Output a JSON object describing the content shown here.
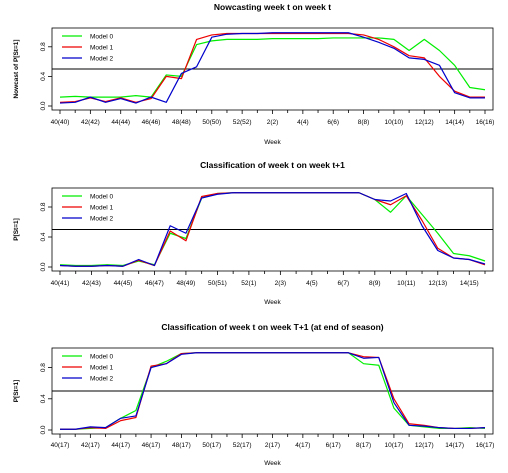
{
  "colors": {
    "Model 0": "#00ee00",
    "Model 1": "#ee0000",
    "Model 2": "#0000cc",
    "threshold": "#000000"
  },
  "chart_data": [
    {
      "type": "line",
      "title": "Nowcasting week t on week t",
      "xlabel": "Week",
      "ylabel": "Nowcast of P[St=1]",
      "ylim": [
        0,
        1
      ],
      "yticks": [
        "0.0",
        "0.4",
        "0.8"
      ],
      "threshold": 0.5,
      "legend_position": "top-left",
      "x_tick_labels": [
        "40(40)",
        "42(42)",
        "44(44)",
        "46(46)",
        "48(48)",
        "50(50)",
        "52(52)",
        "2(2)",
        "4(4)",
        "6(6)",
        "8(8)",
        "10(10)",
        "12(12)",
        "14(14)",
        "16(16)"
      ],
      "series": [
        {
          "name": "Model 0",
          "values": [
            0.12,
            0.13,
            0.12,
            0.12,
            0.12,
            0.14,
            0.12,
            0.42,
            0.4,
            0.83,
            0.88,
            0.9,
            0.9,
            0.9,
            0.91,
            0.91,
            0.91,
            0.91,
            0.92,
            0.92,
            0.92,
            0.92,
            0.9,
            0.75,
            0.9,
            0.75,
            0.55,
            0.25,
            0.22
          ]
        },
        {
          "name": "Model 1",
          "values": [
            0.05,
            0.06,
            0.11,
            0.06,
            0.11,
            0.05,
            0.1,
            0.4,
            0.37,
            0.9,
            0.96,
            0.98,
            0.98,
            0.98,
            0.98,
            0.98,
            0.98,
            0.98,
            0.98,
            0.98,
            0.96,
            0.9,
            0.8,
            0.68,
            0.65,
            0.4,
            0.2,
            0.12,
            0.12
          ]
        },
        {
          "name": "Model 2",
          "values": [
            0.04,
            0.05,
            0.12,
            0.05,
            0.1,
            0.04,
            0.12,
            0.05,
            0.44,
            0.53,
            0.93,
            0.97,
            0.98,
            0.98,
            0.99,
            0.99,
            0.99,
            0.99,
            0.99,
            0.99,
            0.93,
            0.86,
            0.78,
            0.65,
            0.63,
            0.55,
            0.18,
            0.11,
            0.11
          ]
        }
      ]
    },
    {
      "type": "line",
      "title": "Classification of week t on week t+1",
      "xlabel": "Week",
      "ylabel": "P[St=1]",
      "ylim": [
        0,
        1
      ],
      "yticks": [
        "0.0",
        "0.4",
        "0.8"
      ],
      "threshold": 0.5,
      "legend_position": "top-left",
      "x_tick_labels": [
        "40(41)",
        "42(43)",
        "44(45)",
        "46(47)",
        "48(49)",
        "50(51)",
        "52(1)",
        "2(3)",
        "4(5)",
        "6(7)",
        "8(9)",
        "10(11)",
        "12(13)",
        "14(15)",
        "16(17)"
      ],
      "series": [
        {
          "name": "Model 0",
          "values": [
            0.03,
            0.02,
            0.02,
            0.03,
            0.02,
            0.08,
            0.03,
            0.45,
            0.38,
            0.92,
            0.98,
            0.99,
            0.99,
            0.99,
            0.99,
            0.99,
            0.99,
            0.99,
            0.99,
            0.99,
            0.9,
            0.73,
            0.95,
            0.7,
            0.45,
            0.18,
            0.15,
            0.08
          ]
        },
        {
          "name": "Model 1",
          "values": [
            0.02,
            0.01,
            0.01,
            0.02,
            0.01,
            0.09,
            0.02,
            0.48,
            0.35,
            0.94,
            0.98,
            0.99,
            0.99,
            0.99,
            0.99,
            0.99,
            0.99,
            0.99,
            0.99,
            0.99,
            0.9,
            0.83,
            0.95,
            0.62,
            0.25,
            0.12,
            0.1,
            0.03
          ]
        },
        {
          "name": "Model 2",
          "values": [
            0.02,
            0.01,
            0.01,
            0.02,
            0.01,
            0.1,
            0.02,
            0.55,
            0.45,
            0.92,
            0.97,
            0.99,
            0.99,
            0.99,
            0.99,
            0.99,
            0.99,
            0.99,
            0.99,
            0.99,
            0.9,
            0.88,
            0.98,
            0.55,
            0.22,
            0.12,
            0.1,
            0.04
          ]
        }
      ]
    },
    {
      "type": "line",
      "title": "Classification of week t on week T+1 (at end of season)",
      "xlabel": "Week",
      "ylabel": "P[St=1]",
      "ylim": [
        0,
        1
      ],
      "yticks": [
        "0.0",
        "0.4",
        "0.8"
      ],
      "threshold": 0.5,
      "legend_position": "top-left",
      "x_tick_labels": [
        "40(17)",
        "42(17)",
        "44(17)",
        "46(17)",
        "48(17)",
        "50(17)",
        "52(17)",
        "2(17)",
        "4(17)",
        "6(17)",
        "8(17)",
        "10(17)",
        "12(17)",
        "14(17)",
        "16(17)"
      ],
      "series": [
        {
          "name": "Model 0",
          "values": [
            0.01,
            0.01,
            0.02,
            0.03,
            0.15,
            0.25,
            0.8,
            0.88,
            0.98,
            0.99,
            0.99,
            0.99,
            0.99,
            0.99,
            0.99,
            0.99,
            0.99,
            0.99,
            0.99,
            0.99,
            0.85,
            0.83,
            0.28,
            0.06,
            0.04,
            0.02,
            0.02,
            0.03,
            0.02
          ]
        },
        {
          "name": "Model 1",
          "values": [
            0.01,
            0.01,
            0.03,
            0.02,
            0.12,
            0.16,
            0.82,
            0.85,
            0.98,
            0.99,
            0.99,
            0.99,
            0.99,
            0.99,
            0.99,
            0.99,
            0.99,
            0.99,
            0.99,
            0.99,
            0.94,
            0.93,
            0.4,
            0.08,
            0.06,
            0.03,
            0.02,
            0.02,
            0.03
          ]
        },
        {
          "name": "Model 2",
          "values": [
            0.01,
            0.01,
            0.04,
            0.03,
            0.15,
            0.18,
            0.8,
            0.85,
            0.97,
            0.99,
            0.99,
            0.99,
            0.99,
            0.99,
            0.99,
            0.99,
            0.99,
            0.99,
            0.99,
            0.99,
            0.92,
            0.93,
            0.35,
            0.06,
            0.05,
            0.03,
            0.02,
            0.02,
            0.03
          ]
        }
      ]
    }
  ]
}
